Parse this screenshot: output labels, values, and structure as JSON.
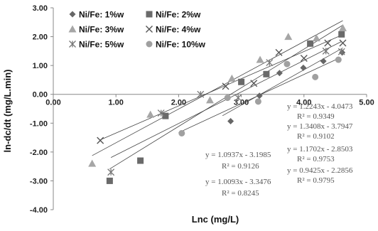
{
  "chart_data": {
    "type": "scatter",
    "xlabel": "Lnc (mg/L)",
    "ylabel": "ln-dc/dt (mg/L.min)",
    "xlim": [
      0,
      5
    ],
    "ylim": [
      -4,
      3
    ],
    "x_ticks": [
      "0.00",
      "1.00",
      "2.00",
      "3.00",
      "4.00",
      "5.00"
    ],
    "y_ticks": [
      "3.00",
      "2.00",
      "1.00",
      "0.00",
      "-1.00",
      "-2.00",
      "-3.00",
      "-4.00"
    ],
    "grid": false,
    "legend_position": "top-left",
    "series": [
      {
        "name": "Ni/Fe: 1%w",
        "marker": "diamond",
        "color": "#666666",
        "x": [
          2.83,
          3.29,
          3.61,
          3.99,
          4.31,
          4.61
        ],
        "y": [
          -0.93,
          -0.05,
          0.74,
          0.92,
          1.15,
          1.45
        ]
      },
      {
        "name": "Ni/Fe: 2%w",
        "marker": "square",
        "color": "#6a6a6a",
        "x": [
          0.9,
          1.39,
          1.79,
          3.0,
          3.4,
          4.1,
          4.6
        ],
        "y": [
          -3.0,
          -2.3,
          -0.75,
          0.43,
          0.7,
          1.76,
          2.08
        ]
      },
      {
        "name": "Ni/Fe: 3%w",
        "marker": "triangle",
        "color": "#a6a6a6",
        "x": [
          0.62,
          1.55,
          2.5,
          2.85,
          3.3,
          3.75,
          4.2,
          4.62
        ],
        "y": [
          -2.4,
          -0.7,
          -0.2,
          0.55,
          1.2,
          2.0,
          1.95,
          2.3
        ]
      },
      {
        "name": "Ni/Fe: 4%w",
        "marker": "x",
        "color": "#555555",
        "x": [
          0.75,
          2.75,
          3.2,
          3.6,
          4.0,
          4.38,
          4.62
        ],
        "y": [
          -1.6,
          0.28,
          0.38,
          1.45,
          1.25,
          1.78,
          1.78
        ]
      },
      {
        "name": "Ni/Fe: 5%w",
        "marker": "star",
        "color": "#777777",
        "x": [
          0.92,
          1.72,
          2.35,
          2.95,
          3.45,
          4.35,
          4.6
        ],
        "y": [
          -2.7,
          -0.65,
          0.0,
          -0.12,
          1.1,
          1.5,
          1.48
        ]
      },
      {
        "name": "Ni/Fe: 10%w",
        "marker": "circle",
        "color": "#a0a0a0",
        "x": [
          2.05,
          2.78,
          3.27,
          3.73,
          4.18,
          4.55
        ],
        "y": [
          -1.35,
          -0.12,
          -0.25,
          1.05,
          0.6,
          1.2
        ]
      }
    ],
    "trendlines": [
      {
        "slope": 1.2243,
        "intercept": -4.0473,
        "x_range": [
          2.7,
          4.62
        ]
      },
      {
        "slope": 1.3408,
        "intercept": -3.7947,
        "x_range": [
          0.9,
          4.62
        ]
      },
      {
        "slope": 1.1702,
        "intercept": -2.8503,
        "x_range": [
          0.62,
          4.62
        ]
      },
      {
        "slope": 0.9425,
        "intercept": -2.2856,
        "x_range": [
          0.75,
          4.62
        ]
      },
      {
        "slope": 1.0937,
        "intercept": -3.1985,
        "x_range": [
          0.92,
          4.6
        ]
      },
      {
        "slope": 1.0093,
        "intercept": -3.3476,
        "x_range": [
          2.0,
          4.55
        ]
      }
    ],
    "annotations": [
      {
        "eq": "y = 1.2243x - 4.0473",
        "r2": "R² = 0.9349"
      },
      {
        "eq": "y = 1.3408x - 3.7947",
        "r2": "R² = 0.9102"
      },
      {
        "eq": "y = 1.1702x - 2.8503",
        "r2": "R² = 0.9753"
      },
      {
        "eq": "y = 0.9425x - 2.2856",
        "r2": "R² = 0.9795"
      },
      {
        "eq": "y = 1.0937x - 3.1985",
        "r2": "R² = 0.9126"
      },
      {
        "eq": "y = 1.0093x - 3.3476",
        "r2": "R² = 0.8245"
      }
    ]
  }
}
